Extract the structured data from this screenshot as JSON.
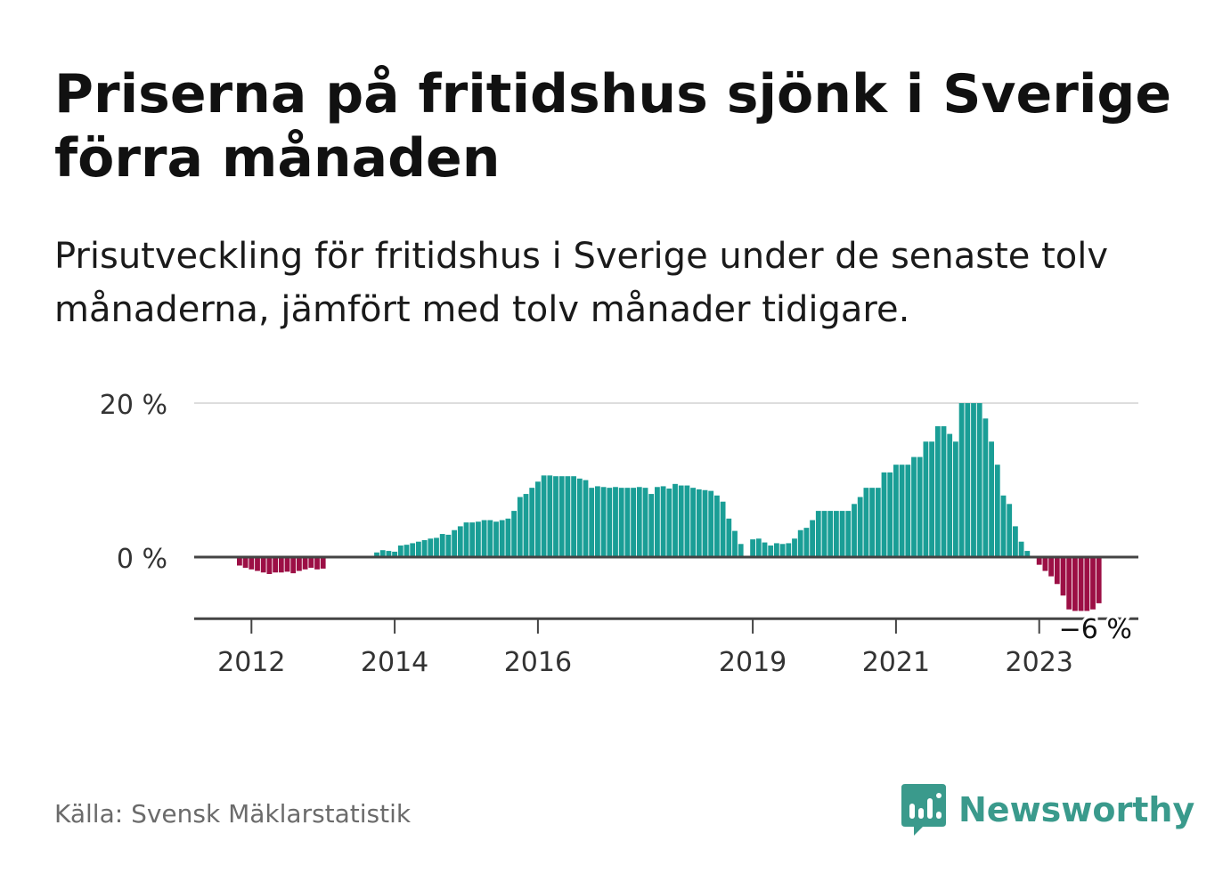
{
  "title": "Priserna på fritidshus sjönk i Sverige förra månaden",
  "subtitle": "Prisutveckling för fritidshus i Sverige under de senaste tolv månaderna, jämfört med tolv månader tidigare.",
  "source": "Källa: Svensk Mäklarstatistik",
  "brand": {
    "name": "Newsworthy",
    "icon": "newsworthy-logo-icon",
    "color": "#3a9a8c"
  },
  "colors": {
    "positive": "#1a9e96",
    "negative": "#9c0f45",
    "grid": "#dddddd",
    "axis": "#444444"
  },
  "chart_data": {
    "type": "bar",
    "unit": "%",
    "x_start": "2011-11",
    "x_ticks": [
      "2012",
      "2014",
      "2016",
      "2019",
      "2021",
      "2023"
    ],
    "y_ticks": [
      {
        "value": 20,
        "label": "20 %"
      },
      {
        "value": 0,
        "label": "0 %"
      }
    ],
    "ylim": [
      -8,
      20
    ],
    "last_label": "−6 %",
    "values": [
      -1.1,
      -1.4,
      -1.6,
      -1.8,
      -2.0,
      -2.2,
      -2.0,
      -2.0,
      -1.9,
      -2.1,
      -1.8,
      -1.6,
      -1.4,
      -1.6,
      -1.5,
      null,
      null,
      null,
      null,
      null,
      null,
      null,
      null,
      0.6,
      0.9,
      0.8,
      0.7,
      1.5,
      1.6,
      1.8,
      2.0,
      2.2,
      2.4,
      2.5,
      3.0,
      2.9,
      3.5,
      4.0,
      4.5,
      4.5,
      4.6,
      4.8,
      4.8,
      4.6,
      4.8,
      5.0,
      6.0,
      7.8,
      8.2,
      9.0,
      9.8,
      10.6,
      10.6,
      10.5,
      10.5,
      10.5,
      10.5,
      10.2,
      10.0,
      9.0,
      9.2,
      9.1,
      9.0,
      9.1,
      9.0,
      9.0,
      9.0,
      9.1,
      9.0,
      8.2,
      9.1,
      9.2,
      8.9,
      9.5,
      9.3,
      9.3,
      9.0,
      8.8,
      8.7,
      8.6,
      8.0,
      7.2,
      5.0,
      3.4,
      1.7,
      null,
      2.3,
      2.4,
      1.9,
      1.5,
      1.8,
      1.7,
      1.8,
      2.4,
      3.5,
      3.8,
      4.8,
      6.0,
      6.0,
      6.0,
      6.0,
      6.0,
      6.0,
      6.9,
      7.8,
      9.0,
      9.0,
      9.0,
      11.0,
      11.0,
      12.0,
      12.0,
      12.0,
      13.0,
      13.0,
      15.0,
      15.0,
      17.0,
      17.0,
      16.0,
      15.0,
      20.0,
      20.0,
      20.0,
      20.0,
      18.0,
      15.0,
      12.0,
      8.0,
      6.9,
      4.0,
      2.0,
      0.8,
      null,
      -1.0,
      -1.8,
      -2.5,
      -3.5,
      -5.0,
      -6.8,
      -7.0,
      -7.0,
      -7.0,
      -6.8,
      -6.0
    ]
  }
}
